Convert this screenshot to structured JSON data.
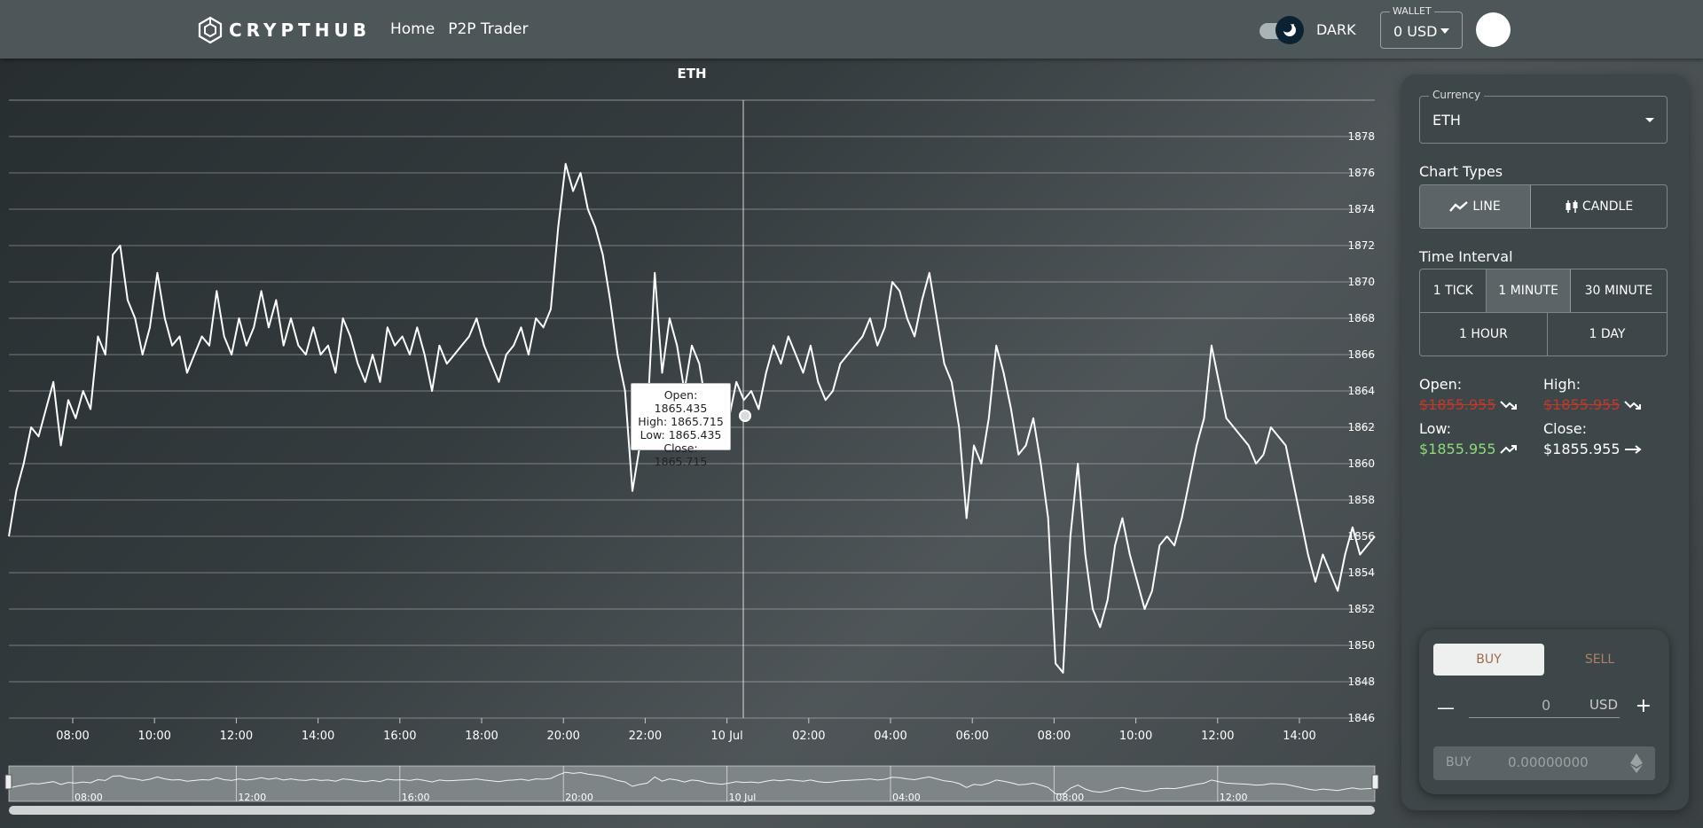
{
  "header": {
    "logo_text": "CRYPTHUB",
    "nav": [
      {
        "label": "Home"
      },
      {
        "label": "P2P Trader"
      }
    ],
    "theme_label": "DARK",
    "wallet": {
      "label": "WALLET",
      "value": "0 USD"
    }
  },
  "chart_data": {
    "type": "line",
    "title": "ETH",
    "ylim": [
      1846,
      1880
    ],
    "y_ticks": [
      "1846",
      "1848",
      "1850",
      "1852",
      "1854",
      "1856",
      "1858",
      "1860",
      "1862",
      "1864",
      "1866",
      "1868",
      "1870",
      "1872",
      "1874",
      "1876",
      "1878"
    ],
    "x_ticks": [
      "08:00",
      "10:00",
      "12:00",
      "14:00",
      "16:00",
      "18:00",
      "20:00",
      "22:00",
      "10 Jul",
      "02:00",
      "04:00",
      "06:00",
      "08:00",
      "10:00",
      "12:00",
      "14:00"
    ],
    "navigator_ticks": [
      "08:00",
      "12:00",
      "16:00",
      "20:00",
      "10 Jul",
      "04:00",
      "08:00",
      "12:00"
    ],
    "series": [
      {
        "x_start": "9 Jul 06:30",
        "x_end": "10 Jul 15:25",
        "values": [
          1856.0,
          1858.5,
          1860.0,
          1862.0,
          1861.5,
          1863.0,
          1864.5,
          1861.0,
          1863.5,
          1862.5,
          1864.0,
          1863.0,
          1867.0,
          1866.0,
          1871.5,
          1872.0,
          1869.0,
          1868.0,
          1866.0,
          1867.5,
          1870.5,
          1868.0,
          1866.5,
          1867.0,
          1865.0,
          1866.0,
          1867.0,
          1866.5,
          1869.5,
          1867.0,
          1866.0,
          1868.0,
          1866.5,
          1867.5,
          1869.5,
          1867.5,
          1869.0,
          1866.5,
          1868.0,
          1866.5,
          1866.0,
          1867.5,
          1866.0,
          1866.5,
          1865.0,
          1868.0,
          1867.0,
          1865.5,
          1864.5,
          1866.0,
          1864.5,
          1867.5,
          1866.5,
          1867.0,
          1866.0,
          1867.5,
          1866.0,
          1864.0,
          1866.5,
          1865.5,
          1866.0,
          1866.5,
          1867.0,
          1868.0,
          1866.5,
          1865.5,
          1864.5,
          1866.0,
          1866.5,
          1867.5,
          1866.0,
          1868.0,
          1867.5,
          1868.5,
          1873.0,
          1876.5,
          1875.0,
          1876.0,
          1874.0,
          1873.0,
          1871.5,
          1869.0,
          1866.0,
          1864.0,
          1858.5,
          1861.0,
          1862.5,
          1870.5,
          1865.0,
          1868.0,
          1866.5,
          1864.0,
          1866.5,
          1865.5,
          1863.0,
          1862.0,
          1861.0,
          1862.5,
          1864.5,
          1863.5,
          1864.0,
          1863.0,
          1865.0,
          1866.5,
          1865.5,
          1867.0,
          1866.0,
          1865.0,
          1866.5,
          1864.5,
          1863.5,
          1864.0,
          1865.5,
          1866.0,
          1866.5,
          1867.0,
          1868.0,
          1866.5,
          1867.5,
          1870.0,
          1869.5,
          1868.0,
          1867.0,
          1869.0,
          1870.5,
          1868.0,
          1865.5,
          1864.5,
          1862.0,
          1857.0,
          1861.0,
          1860.0,
          1862.5,
          1866.5,
          1865.0,
          1863.0,
          1860.5,
          1861.0,
          1862.5,
          1860.0,
          1857.0,
          1849.0,
          1848.5,
          1856.0,
          1860.0,
          1855.0,
          1852.0,
          1851.0,
          1852.5,
          1855.5,
          1857.0,
          1855.0,
          1853.5,
          1852.0,
          1853.0,
          1855.5,
          1856.0,
          1855.5,
          1857.0,
          1859.0,
          1861.0,
          1862.5,
          1866.5,
          1864.5,
          1862.5,
          1862.0,
          1861.5,
          1861.0,
          1860.0,
          1860.5,
          1862.0,
          1861.5,
          1861.0,
          1859.0,
          1857.0,
          1855.0,
          1853.5,
          1855.0,
          1854.0,
          1853.0,
          1855.0,
          1856.5,
          1855.0,
          1855.5,
          1856.0
        ]
      }
    ]
  },
  "tooltip": {
    "open": "Open: 1865.435",
    "high": "High: 1865.715",
    "low": "Low: 1865.435",
    "close": "Close: 1865.715"
  },
  "panel": {
    "currency": {
      "label": "Currency",
      "value": "ETH"
    },
    "chart_types": {
      "label": "Chart Types",
      "options": [
        "LINE",
        "CANDLE"
      ],
      "selected": "LINE"
    },
    "time_interval": {
      "label": "Time Interval",
      "options": [
        "1 TICK",
        "1 MINUTE",
        "30 MINUTE",
        "1 HOUR",
        "1 DAY"
      ],
      "selected": "1 MINUTE"
    },
    "stats": {
      "open": {
        "label": "Open:",
        "value": "$1855.955"
      },
      "high": {
        "label": "High:",
        "value": "$1855.955"
      },
      "low": {
        "label": "Low:",
        "value": "$1855.955"
      },
      "close": {
        "label": "Close:",
        "value": "$1855.955"
      }
    },
    "trade": {
      "buy_tab": "BUY",
      "sell_tab": "SELL",
      "amount": "0",
      "unit": "USD",
      "buy_button_label": "BUY",
      "buy_button_value": "0.00000000"
    }
  },
  "colors": {
    "up": "#8ed97a",
    "down": "#c0392b",
    "header": "#4d5759",
    "panel": "#3d4648"
  }
}
